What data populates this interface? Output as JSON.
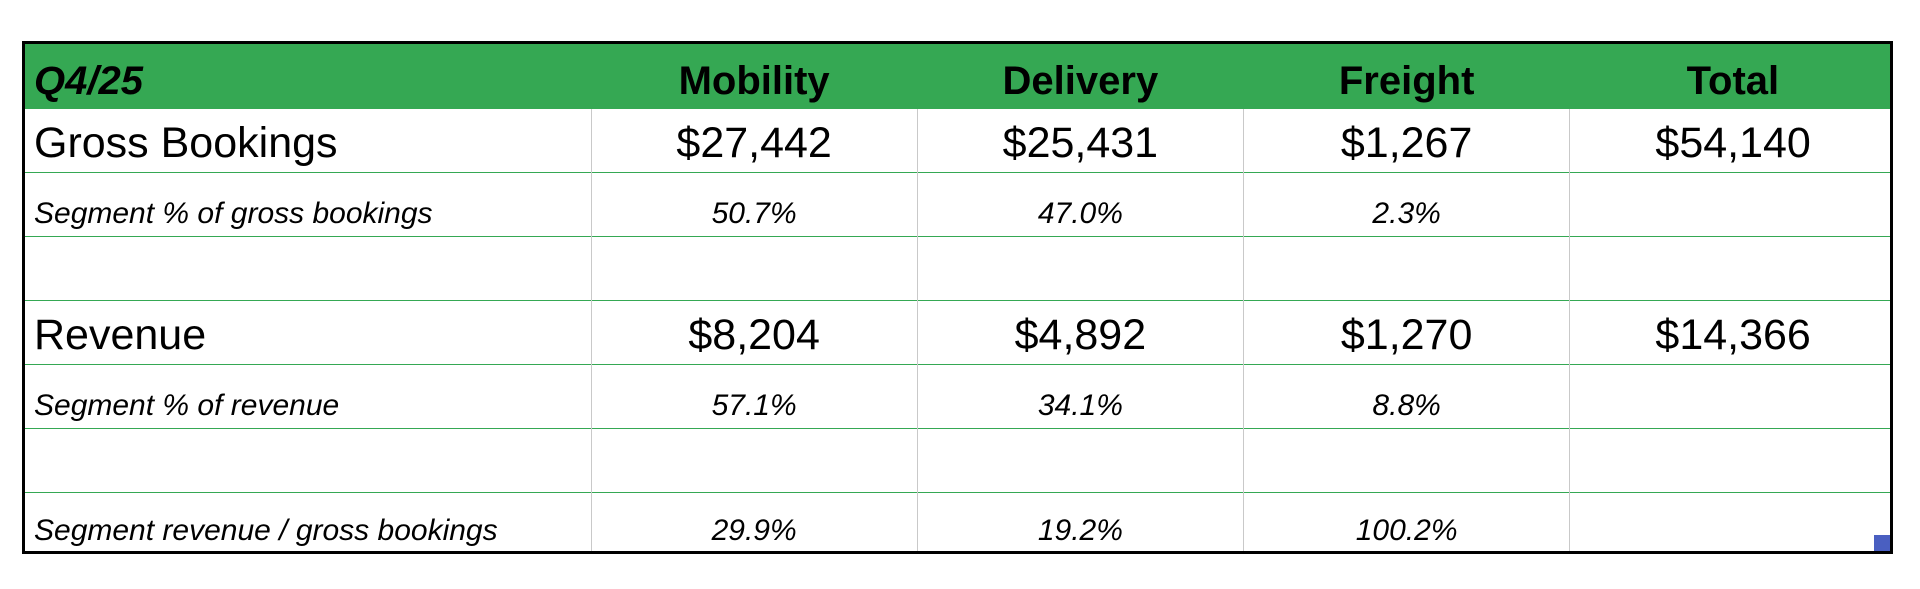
{
  "sheet": {
    "headers": [
      "Q4/25",
      "Mobility",
      "Delivery",
      "Freight",
      "Total"
    ],
    "rows": [
      {
        "label": "Gross Bookings",
        "values": [
          "$27,442",
          "$25,431",
          "$1,267",
          "$54,140"
        ]
      },
      {
        "label": "Segment % of gross bookings",
        "values": [
          "50.7%",
          "47.0%",
          "2.3%",
          ""
        ]
      },
      {
        "label": "",
        "values": [
          "",
          "",
          "",
          ""
        ]
      },
      {
        "label": "Revenue",
        "values": [
          "$8,204",
          "$4,892",
          "$1,270",
          "$14,366"
        ]
      },
      {
        "label": "Segment % of revenue",
        "values": [
          "57.1%",
          "34.1%",
          "8.8%",
          ""
        ]
      },
      {
        "label": "",
        "values": [
          "",
          "",
          "",
          ""
        ]
      },
      {
        "label": "Segment revenue / gross bookings",
        "values": [
          "29.9%",
          "19.2%",
          "100.2%",
          ""
        ]
      }
    ]
  },
  "colors": {
    "header_fill": "#35a853",
    "row_border": "#35a853",
    "column_border": "#c9c9c9",
    "fill_handle": "#4a5fc1"
  },
  "icons": {
    "fill_handle": "fill-handle-icon"
  }
}
